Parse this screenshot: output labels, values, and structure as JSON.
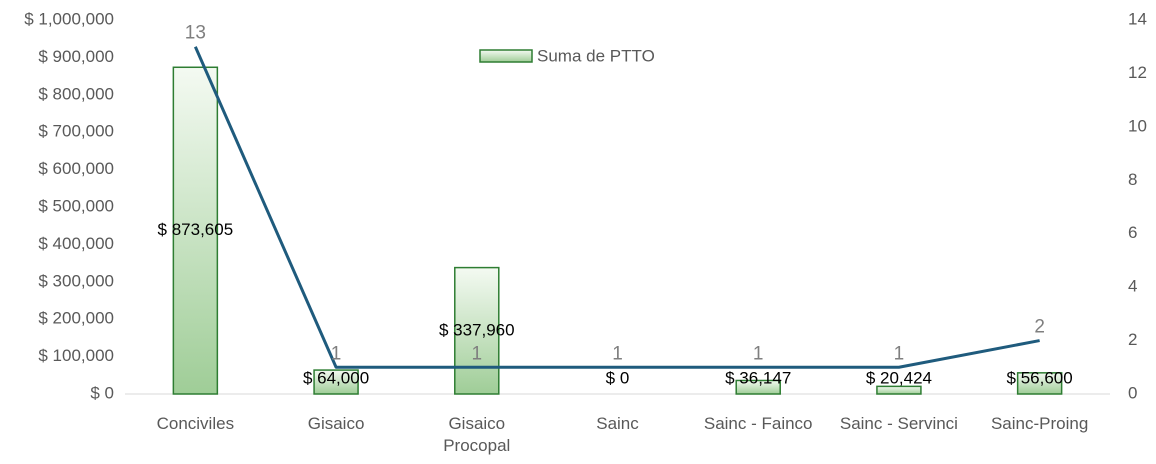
{
  "chart_data": {
    "type": "bar",
    "categories": [
      "Conciviles",
      "Gisaico",
      "Gisaico Procopal",
      "Sainc",
      "Sainc - Fainco",
      "Sainc - Servinci",
      "Sainc-Proing"
    ],
    "series": [
      {
        "name": "Suma de PTTO",
        "type": "bar",
        "color": "#2e7d32",
        "values": [
          873605,
          64000,
          337960,
          0,
          36147,
          20424,
          56600
        ],
        "value_labels": [
          "$ 873,605",
          "$ 64,000",
          "$ 337,960",
          "$ 0",
          "$ 36,147",
          "$ 20,424",
          "$ 56,600"
        ]
      },
      {
        "type": "line",
        "axis": "y2",
        "color": "#1f5b7d",
        "values": [
          13,
          1,
          1,
          1,
          1,
          1,
          2
        ]
      }
    ],
    "ylim": [
      0,
      1000000
    ],
    "yticks": [
      {
        "value": 0,
        "label": "$ 0"
      },
      {
        "value": 100000,
        "label": "$ 100,000"
      },
      {
        "value": 200000,
        "label": "$ 200,000"
      },
      {
        "value": 300000,
        "label": "$ 300,000"
      },
      {
        "value": 400000,
        "label": "$ 400,000"
      },
      {
        "value": 500000,
        "label": "$ 500,000"
      },
      {
        "value": 600000,
        "label": "$ 600,000"
      },
      {
        "value": 700000,
        "label": "$ 700,000"
      },
      {
        "value": 800000,
        "label": "$ 800,000"
      },
      {
        "value": 900000,
        "label": "$ 900,000"
      },
      {
        "value": 1000000,
        "label": "$ 1,000,000"
      }
    ],
    "y2lim": [
      0,
      14
    ],
    "y2ticks": [
      0,
      2,
      4,
      6,
      8,
      10,
      12,
      14
    ],
    "legend": "top"
  }
}
